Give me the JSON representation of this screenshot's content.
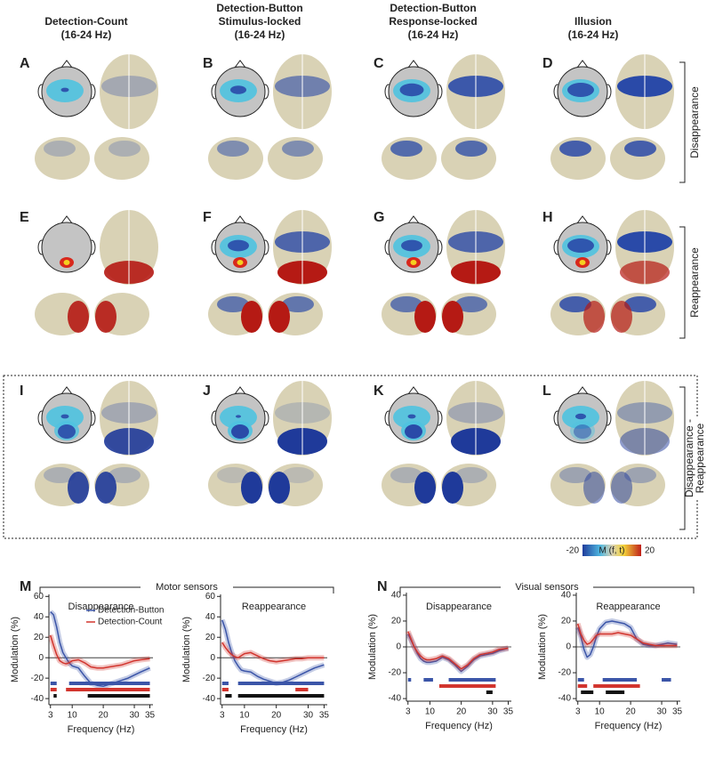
{
  "figure": {
    "columns": [
      [
        "Detection-Count",
        "(16-24 Hz)"
      ],
      [
        "Detection-Button",
        "Stimulus-locked",
        "(16-24 Hz)"
      ],
      [
        "Detection-Button",
        "Response-locked",
        "(16-24 Hz)"
      ],
      [
        "Illusion",
        "(16-24 Hz)"
      ]
    ],
    "panels": [
      "A",
      "B",
      "C",
      "D",
      "E",
      "F",
      "G",
      "H",
      "I",
      "J",
      "K",
      "L"
    ],
    "rows": [
      [
        "Disappearance"
      ],
      [
        "Reappearance"
      ],
      [
        "Disappearance -",
        "Reappearance"
      ]
    ],
    "colorbar": {
      "min": -20,
      "max": 20,
      "label": "M (f, t)"
    },
    "groups": [
      {
        "letter": "M",
        "label": "Motor sensors"
      },
      {
        "letter": "N",
        "label": "Visual sensors"
      }
    ]
  },
  "chart_data": [
    {
      "type": "line",
      "title": "Disappearance",
      "xlabel": "Frequency (Hz)",
      "ylabel": "Modulation (%)",
      "x": [
        3,
        4,
        5,
        6,
        7,
        8,
        9,
        10,
        12,
        14,
        16,
        18,
        20,
        22,
        24,
        26,
        28,
        30,
        32,
        35
      ],
      "xlim": [
        2.5,
        36
      ],
      "xticks": [
        3,
        10,
        20,
        30,
        35
      ],
      "ylim": [
        -46,
        62
      ],
      "yticks": [
        60,
        40,
        20,
        0,
        -20,
        -40
      ],
      "legend": "upper right",
      "series": [
        {
          "name": "Detection-Button",
          "color": "#3b55a8",
          "values": [
            45,
            42,
            30,
            15,
            5,
            0,
            -5,
            -8,
            -10,
            -18,
            -25,
            -27,
            -28,
            -26,
            -24,
            -22,
            -20,
            -17,
            -14,
            -10
          ]
        },
        {
          "name": "Detection-Count",
          "color": "#d2352e",
          "values": [
            22,
            12,
            3,
            -3,
            -5,
            -6,
            -5,
            -3,
            -2,
            -5,
            -9,
            -10,
            -10,
            -9,
            -8,
            -7,
            -5,
            -3,
            -2,
            -1
          ]
        }
      ],
      "significance": [
        {
          "color": "#3b55a8",
          "ranges": [
            [
              3,
              5
            ],
            [
              9,
              35
            ]
          ]
        },
        {
          "color": "#d2352e",
          "ranges": [
            [
              3,
              5
            ],
            [
              8,
              35
            ]
          ]
        },
        {
          "color": "#111111",
          "ranges": [
            [
              4,
              5
            ],
            [
              15,
              35
            ]
          ]
        }
      ]
    },
    {
      "type": "line",
      "title": "Reappearance",
      "xlabel": "Frequency (Hz)",
      "ylabel": "Modulation (%)",
      "x": [
        3,
        4,
        5,
        6,
        7,
        8,
        9,
        10,
        12,
        14,
        16,
        18,
        20,
        22,
        24,
        26,
        28,
        30,
        32,
        35
      ],
      "xlim": [
        2.5,
        36
      ],
      "xticks": [
        3,
        10,
        20,
        30,
        35
      ],
      "ylim": [
        -46,
        62
      ],
      "yticks": [
        60,
        40,
        20,
        0,
        -20,
        -40
      ],
      "series": [
        {
          "color": "#3b55a8",
          "values": [
            37,
            28,
            15,
            5,
            -3,
            -8,
            -12,
            -13,
            -14,
            -18,
            -21,
            -23,
            -25,
            -24,
            -22,
            -19,
            -16,
            -13,
            -10,
            -7
          ]
        },
        {
          "color": "#d2352e",
          "values": [
            15,
            10,
            6,
            3,
            1,
            0,
            2,
            4,
            5,
            2,
            -1,
            -3,
            -4,
            -3,
            -2,
            -1,
            -1,
            0,
            0,
            0
          ]
        }
      ],
      "significance": [
        {
          "color": "#3b55a8",
          "ranges": [
            [
              3,
              5
            ],
            [
              8,
              35
            ]
          ]
        },
        {
          "color": "#d2352e",
          "ranges": [
            [
              3,
              5
            ],
            [
              26,
              30
            ]
          ]
        },
        {
          "color": "#111111",
          "ranges": [
            [
              4,
              6
            ],
            [
              8,
              35
            ]
          ]
        }
      ]
    },
    {
      "type": "line",
      "title": "Disappearance",
      "xlabel": "Frequency (Hz)",
      "ylabel": "Modulation (%)",
      "x": [
        3,
        4,
        5,
        6,
        7,
        8,
        9,
        10,
        12,
        14,
        16,
        18,
        20,
        22,
        24,
        26,
        28,
        30,
        32,
        35
      ],
      "xlim": [
        2.5,
        36
      ],
      "xticks": [
        3,
        10,
        20,
        30,
        35
      ],
      "ylim": [
        -42,
        42
      ],
      "yticks": [
        40,
        20,
        0,
        -20,
        -40
      ],
      "series": [
        {
          "color": "#3b55a8",
          "values": [
            10,
            5,
            0,
            -5,
            -9,
            -11,
            -12,
            -12,
            -11,
            -8,
            -10,
            -14,
            -19,
            -15,
            -10,
            -7,
            -6,
            -5,
            -3,
            -1
          ]
        },
        {
          "color": "#d2352e",
          "values": [
            12,
            6,
            0,
            -4,
            -7,
            -9,
            -10,
            -10,
            -9,
            -7,
            -9,
            -13,
            -17,
            -14,
            -9,
            -6,
            -5,
            -4,
            -2,
            -1
          ]
        }
      ],
      "significance": [
        {
          "color": "#3b55a8",
          "ranges": [
            [
              3,
              4
            ],
            [
              8,
              11
            ],
            [
              16,
              31
            ]
          ]
        },
        {
          "color": "#d2352e",
          "ranges": [
            [
              13,
              31
            ]
          ]
        },
        {
          "color": "#111111",
          "ranges": [
            [
              28,
              30
            ]
          ]
        }
      ]
    },
    {
      "type": "line",
      "title": "Reappearance",
      "xlabel": "Frequency (Hz)",
      "ylabel": "Modulation (%)",
      "x": [
        3,
        4,
        5,
        6,
        7,
        8,
        9,
        10,
        12,
        14,
        16,
        18,
        20,
        22,
        24,
        26,
        28,
        30,
        32,
        35
      ],
      "xlim": [
        2.5,
        36
      ],
      "xticks": [
        3,
        10,
        20,
        30,
        35
      ],
      "ylim": [
        -42,
        42
      ],
      "yticks": [
        40,
        20,
        0,
        -20,
        -40
      ],
      "series": [
        {
          "color": "#3b55a8",
          "values": [
            15,
            8,
            -2,
            -8,
            -6,
            0,
            8,
            14,
            19,
            20,
            19,
            18,
            15,
            6,
            2,
            1,
            1,
            2,
            3,
            2
          ]
        },
        {
          "color": "#d2352e",
          "values": [
            18,
            10,
            5,
            2,
            3,
            6,
            9,
            10,
            10,
            10,
            11,
            10,
            9,
            6,
            3,
            2,
            1,
            1,
            1,
            1
          ]
        }
      ],
      "significance": [
        {
          "color": "#3b55a8",
          "ranges": [
            [
              3,
              5
            ],
            [
              11,
              22
            ],
            [
              30,
              33
            ]
          ]
        },
        {
          "color": "#d2352e",
          "ranges": [
            [
              3,
              6
            ],
            [
              8,
              23
            ]
          ]
        },
        {
          "color": "#111111",
          "ranges": [
            [
              4,
              8
            ],
            [
              12,
              18
            ]
          ]
        }
      ]
    }
  ]
}
